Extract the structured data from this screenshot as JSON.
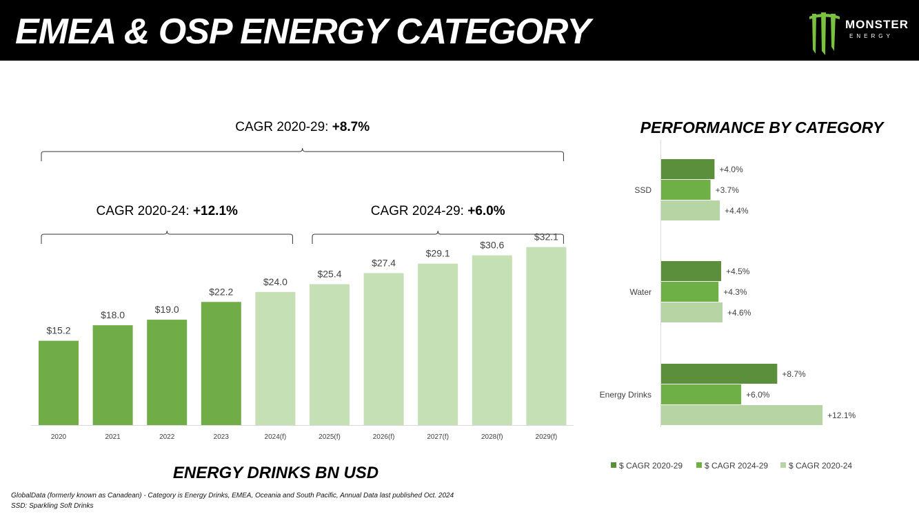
{
  "header": {
    "title": "EMEA & OSP ENERGY CATEGORY",
    "logo": {
      "brand": "MONSTER",
      "sub": "ENERGY",
      "icon": "monster-claw-icon"
    }
  },
  "colors": {
    "dark_green": "#5c8f3c",
    "mid_green": "#6fb046",
    "light_green": "#b7d5a4",
    "actual_bar": "#70ad47",
    "forecast_bar": "#c5e0b4"
  },
  "chart_data": [
    {
      "type": "bar",
      "title": "ENERGY DRINKS BN USD",
      "categories": [
        "2020",
        "2021",
        "2022",
        "2023",
        "2024(f)",
        "2025(f)",
        "2026(f)",
        "2027(f)",
        "2028(f)",
        "2029(f)"
      ],
      "values": [
        15.2,
        18.0,
        19.0,
        22.2,
        24.0,
        25.4,
        27.4,
        29.1,
        30.6,
        32.1
      ],
      "labels": [
        "$15.2",
        "$18.0",
        "$19.0",
        "$22.2",
        "$24.0",
        "$25.4",
        "$27.4",
        "$29.1",
        "$30.6",
        "$32.1"
      ],
      "forecast": [
        false,
        false,
        false,
        false,
        true,
        true,
        true,
        true,
        true,
        true
      ],
      "ylim": [
        0,
        40
      ],
      "xlabel": "",
      "ylabel": "",
      "annotations": [
        {
          "label": "CAGR 2020-29: ",
          "value": "+8.7%",
          "from": "2020",
          "to": "2029(f)"
        },
        {
          "label": "CAGR 2020-24: ",
          "value": "+12.1%",
          "from": "2020",
          "to": "2024(f)"
        },
        {
          "label": "CAGR 2024-29: ",
          "value": "+6.0%",
          "from": "2025(f)",
          "to": "2029(f)"
        }
      ]
    },
    {
      "type": "bar",
      "orientation": "horizontal",
      "title": "PERFORMANCE BY CATEGORY",
      "categories": [
        "SSD",
        "Water",
        "Energy Drinks"
      ],
      "series": [
        {
          "name": "$ CAGR 2020-29",
          "values": [
            4.0,
            4.5,
            8.7
          ],
          "labels": [
            "+4.0%",
            "+4.5%",
            "+8.7%"
          ],
          "color": "#5c8f3c"
        },
        {
          "name": "$ CAGR 2024-29",
          "values": [
            3.7,
            4.3,
            6.0
          ],
          "labels": [
            "+3.7%",
            "+4.3%",
            "+6.0%"
          ],
          "color": "#6fb046"
        },
        {
          "name": "$ CAGR 2020-24",
          "values": [
            4.4,
            4.6,
            12.1
          ],
          "labels": [
            "+4.4%",
            "+4.6%",
            "+12.1%"
          ],
          "color": "#b7d5a4"
        }
      ],
      "xlim": [
        0,
        14
      ],
      "grid": false,
      "legend": "bottom"
    }
  ],
  "footnotes": [
    "GlobalData (formerly known as Canadean) - Category is Energy Drinks, EMEA, Oceania and South Pacific, Annual Data last published Oct. 2024",
    "SSD: Sparkling Soft Drinks"
  ]
}
